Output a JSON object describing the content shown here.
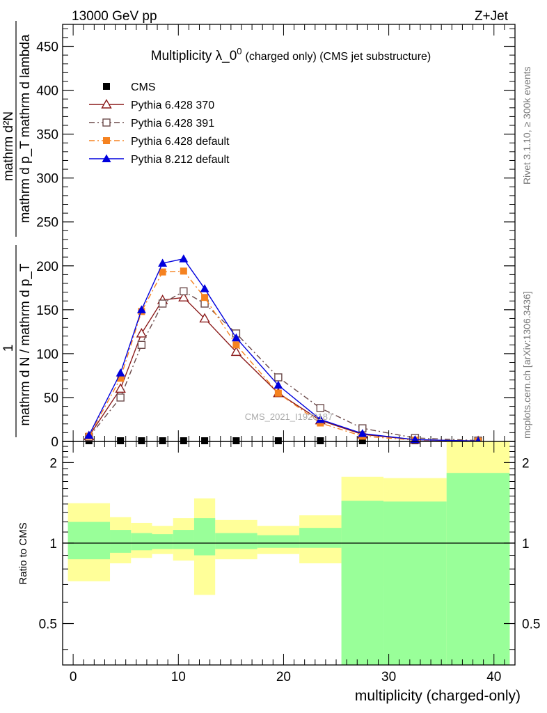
{
  "header": {
    "energy_label": "13000 GeV pp",
    "process_label": "Z+Jet",
    "rivet_label": "Rivet 3.1.10, ≥ 300k events",
    "mcplots_label": "mcplots.cern.ch [arXiv:1306.3436]",
    "watermark": "CMS_2021_I1920187"
  },
  "chart_data": [
    {
      "type": "line",
      "panel": "main",
      "title": "Multiplicity λ_0",
      "title_sup": "0",
      "title_suffix": "(charged only) (CMS jet substructure)",
      "ylabel_numerator": "mathrm d²N",
      "ylabel_denominator": "mathrm d p_T mathrm d lambda",
      "ylabel_left_num": "1",
      "ylabel_left_den": "mathrm d N / mathrm d p_T",
      "xlim": [
        -1,
        42
      ],
      "ylim": [
        0,
        475
      ],
      "yticks": [
        0,
        50,
        100,
        150,
        200,
        250,
        300,
        350,
        400,
        450
      ],
      "x": [
        1.5,
        4.5,
        6.5,
        8.5,
        10.5,
        12.5,
        15.5,
        19.5,
        23.5,
        27.5,
        32.5,
        38.5
      ],
      "series": [
        {
          "name": "CMS",
          "marker": "filled-square",
          "color": "#000000",
          "values": [
            0.5,
            0.5,
            0.5,
            0.5,
            0.5,
            0.5,
            0.5,
            0.5,
            0.5,
            0.5,
            0.3,
            0.2
          ]
        },
        {
          "name": "Pythia 6.428 370",
          "marker": "open-triangle",
          "color": "#8b1a1a",
          "values": [
            6,
            60,
            123,
            161,
            164,
            140,
            102,
            55,
            24,
            8,
            2,
            0.5
          ]
        },
        {
          "name": "Pythia 6.428 391",
          "marker": "open-square",
          "color": "#6b4a4a",
          "values": [
            5,
            50,
            110,
            157,
            171,
            157,
            123,
            73,
            38,
            15,
            4,
            1
          ]
        },
        {
          "name": "Pythia 6.428 default",
          "marker": "filled-square",
          "color": "#f58220",
          "values": [
            6,
            72,
            148,
            193,
            194,
            164,
            110,
            55,
            21,
            6,
            1.5,
            0.3
          ]
        },
        {
          "name": "Pythia 8.212 default",
          "marker": "filled-triangle",
          "color": "#0000dd",
          "values": [
            7,
            78,
            150,
            203,
            208,
            174,
            118,
            64,
            25,
            9,
            2,
            0.4
          ]
        }
      ]
    },
    {
      "type": "area",
      "panel": "ratio",
      "ylabel": "Ratio to CMS",
      "xlabel": "multiplicity (charged-only)",
      "xlim": [
        -1,
        42
      ],
      "ylim": [
        0.35,
        2.4
      ],
      "yticks": [
        "0.5",
        "1",
        "2"
      ],
      "xticks": [
        "0",
        "10",
        "20",
        "30",
        "40"
      ],
      "bin_edges": [
        -0.5,
        3.5,
        5.5,
        7.5,
        9.5,
        11.5,
        13.5,
        17.5,
        21.5,
        25.5,
        29.5,
        35.5,
        41.5
      ],
      "stat_band": {
        "name": "stat",
        "color": "#99ff99",
        "lower": [
          0.87,
          0.92,
          0.94,
          0.95,
          0.95,
          0.9,
          0.95,
          0.96,
          0.96,
          0.35,
          0.35,
          0.35
        ],
        "upper": [
          1.2,
          1.12,
          1.09,
          1.08,
          1.12,
          1.24,
          1.09,
          1.07,
          1.14,
          1.44,
          1.43,
          1.83
        ]
      },
      "syst_band": {
        "name": "stat+syst",
        "color": "#ffff99",
        "lower": [
          0.72,
          0.84,
          0.88,
          0.91,
          0.86,
          0.64,
          0.87,
          0.91,
          0.84,
          0.69,
          0.69,
          0.35
        ],
        "upper": [
          1.41,
          1.25,
          1.19,
          1.16,
          1.24,
          1.47,
          1.22,
          1.16,
          1.27,
          1.77,
          1.75,
          2.4
        ]
      },
      "reference_line": 1
    }
  ]
}
